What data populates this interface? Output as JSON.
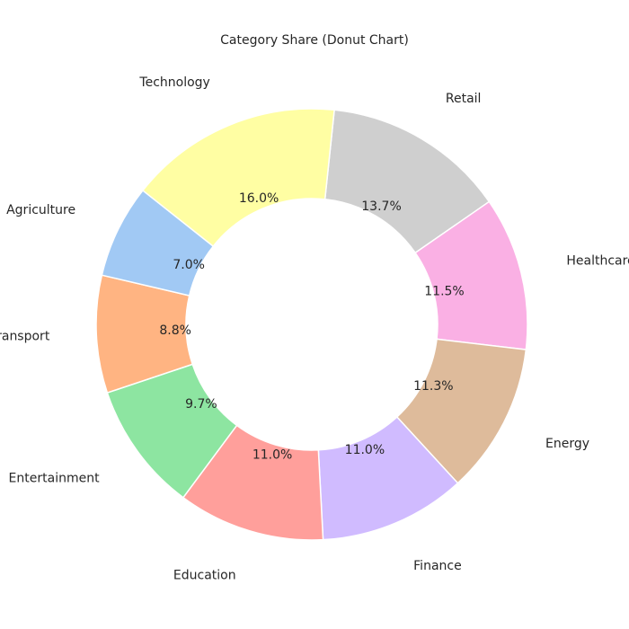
{
  "chart_data": {
    "type": "pie",
    "variant": "donut",
    "title": "Category Share (Donut Chart)",
    "categories": [
      "Retail",
      "Healthcare",
      "Energy",
      "Finance",
      "Education",
      "Entertainment",
      "Transport",
      "Agriculture",
      "Technology"
    ],
    "values": [
      13.7,
      11.5,
      11.3,
      11.0,
      11.0,
      9.7,
      8.8,
      7.0,
      16.0
    ],
    "value_labels": [
      "13.7%",
      "11.5%",
      "11.3%",
      "11.0%",
      "11.0%",
      "9.7%",
      "8.8%",
      "7.0%",
      "16.0%"
    ],
    "colors": [
      "#cfcfcf",
      "#fab0e4",
      "#debb9b",
      "#d0bbff",
      "#ff9f9b",
      "#8de5a1",
      "#ffb482",
      "#a1c9f4",
      "#fffea3"
    ],
    "legend": "none"
  }
}
